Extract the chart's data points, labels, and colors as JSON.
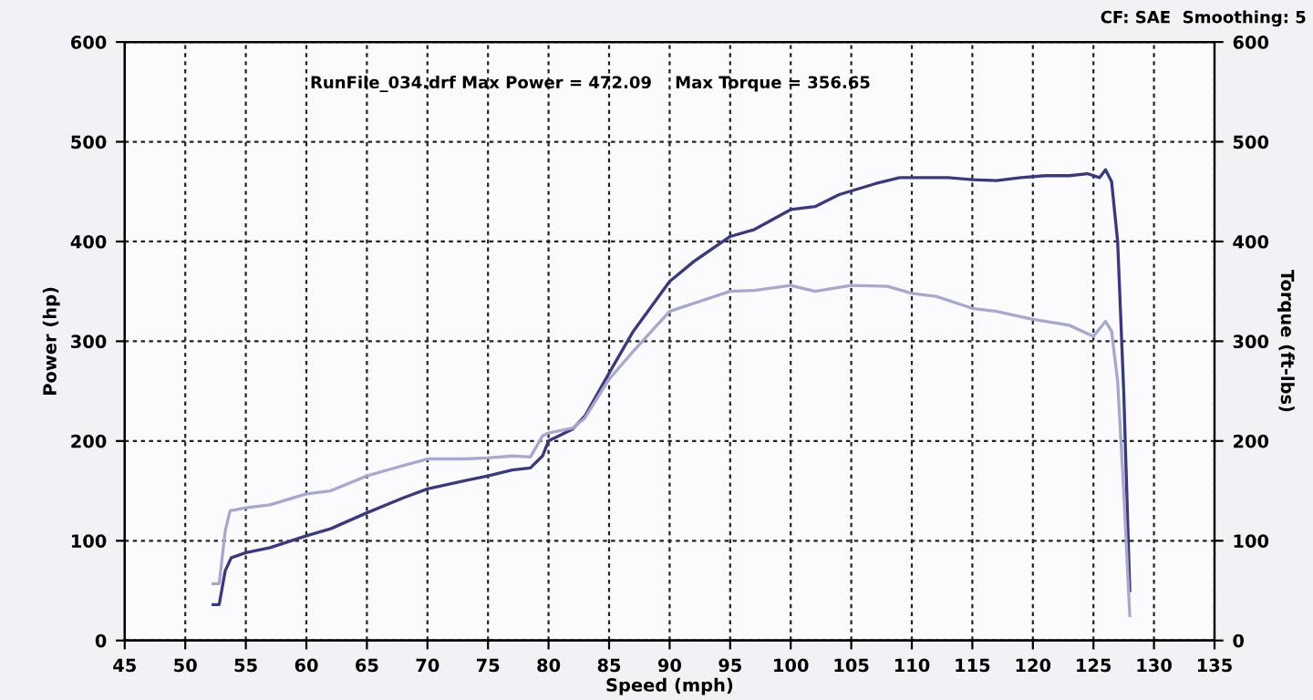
{
  "chart_data": {
    "type": "line",
    "xlabel": "Speed (mph)",
    "ylabel": "Power (hp)",
    "y2label": "Torque (ft-lbs)",
    "annotations": [
      "RunFile_034.drf Max Power = 472.09    Max Torque = 356.65",
      "CF: SAE  Smoothing: 5"
    ],
    "xlim": [
      45,
      135
    ],
    "xticks": [
      45,
      50,
      55,
      60,
      65,
      70,
      75,
      80,
      85,
      90,
      95,
      100,
      105,
      110,
      115,
      120,
      125,
      130,
      135
    ],
    "ylim": [
      0,
      600
    ],
    "yticks": [
      0,
      100,
      200,
      300,
      400,
      500,
      600
    ],
    "y2lim": [
      0,
      600
    ],
    "y2ticks": [
      0,
      100,
      200,
      300,
      400,
      500,
      600
    ],
    "grid": true,
    "line_style": "solid",
    "marker": "none",
    "series": [
      {
        "color": "#3a3a7a",
        "x": [
          52.3,
          52.8,
          53.3,
          53.8,
          55,
          57,
          60,
          62,
          65,
          68,
          70,
          73,
          75,
          77,
          78.5,
          79.5,
          80,
          82,
          83,
          85,
          87,
          90,
          92,
          95,
          97,
          100,
          102,
          104,
          107,
          109,
          111,
          113,
          115,
          117,
          119,
          121,
          123,
          124.5,
          125.5,
          126,
          126.5,
          127,
          127.5,
          128
        ],
        "values": [
          36,
          36,
          70,
          83,
          88,
          93,
          105,
          112,
          128,
          143,
          152,
          160,
          165,
          171,
          173,
          185,
          200,
          212,
          225,
          268,
          310,
          360,
          380,
          405,
          412,
          432,
          435,
          447,
          458,
          464,
          464,
          464,
          462,
          461,
          464,
          466,
          466,
          468,
          464,
          472,
          460,
          400,
          250,
          50
        ]
      },
      {
        "color": "#a8a8cc",
        "axis": "y2",
        "x": [
          52.3,
          52.8,
          53.3,
          53.7,
          55,
          57,
          60,
          62,
          65,
          67,
          70,
          73,
          75,
          77,
          78.5,
          79.5,
          80,
          82,
          83,
          85,
          87,
          90,
          93,
          95,
          97,
          100,
          102,
          105,
          108,
          110,
          112,
          115,
          117,
          120,
          122,
          123,
          125,
          126,
          126.5,
          127,
          127.5,
          128
        ],
        "values": [
          57,
          57,
          110,
          130,
          133,
          136,
          147,
          150,
          165,
          172,
          182,
          182,
          183,
          185,
          184,
          205,
          208,
          213,
          223,
          262,
          290,
          330,
          342,
          350,
          351,
          356,
          350,
          356,
          355,
          348,
          345,
          333,
          330,
          322,
          318,
          316,
          305,
          320,
          310,
          260,
          150,
          25
        ]
      }
    ]
  }
}
